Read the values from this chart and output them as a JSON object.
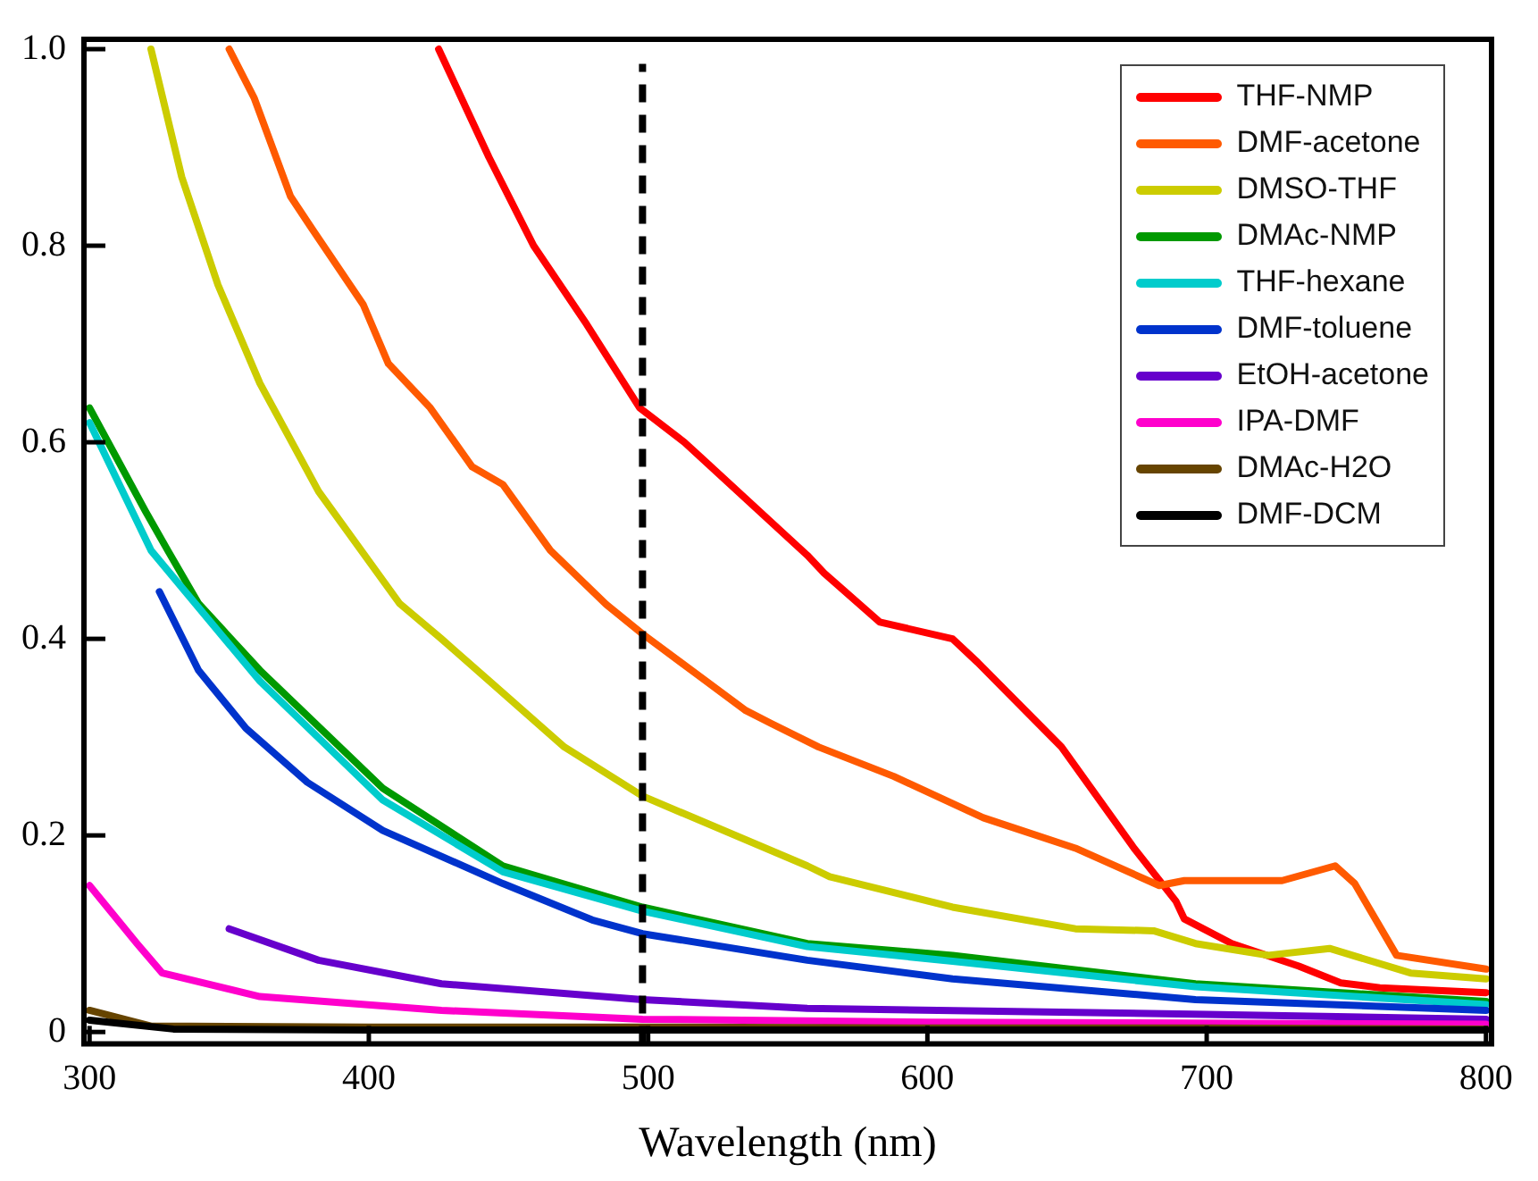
{
  "chart_data": {
    "type": "line",
    "xlabel": "Wavelength (nm)",
    "xlim": [
      298,
      802
    ],
    "xticks": [
      300,
      400,
      500,
      600,
      700,
      800
    ],
    "ylim": [
      -0.012,
      1.01
    ],
    "yticks": [
      0,
      {
        "value": 0.2,
        "label": "0.2"
      },
      {
        "value": 0.4,
        "label": "0.4"
      },
      {
        "value": 0.6,
        "label": "0.6"
      },
      {
        "value": 0.8,
        "label": "0.8"
      },
      {
        "value": 1,
        "label": "1.0"
      }
    ],
    "grid": false,
    "legend": "top right",
    "line_style": "solid",
    "marker": "none",
    "ref_lines": [
      {
        "axis": "x",
        "value": 498,
        "color": "#000000",
        "line_style": "dashed"
      }
    ],
    "series": [
      {
        "name": "THF-NMP",
        "color": "#ff0000",
        "x": [
          425,
          443,
          459,
          478,
          497,
          513,
          557,
          563,
          583,
          609,
          618,
          648,
          674,
          689,
          692,
          709,
          733,
          748,
          762,
          800
        ],
        "values": [
          1.0,
          0.89,
          0.8,
          0.72,
          0.635,
          0.6,
          0.485,
          0.467,
          0.417,
          0.4,
          0.376,
          0.29,
          0.187,
          0.133,
          0.115,
          0.09,
          0.067,
          0.05,
          0.045,
          0.04
        ]
      },
      {
        "name": "DMF-acetone",
        "color": "#ff5a00",
        "x": [
          350,
          359,
          372,
          379,
          398,
          407,
          422,
          437,
          448,
          465,
          485,
          498,
          535,
          544,
          561,
          588,
          620,
          653,
          683,
          692,
          727,
          746,
          753,
          768,
          800
        ],
        "values": [
          1.0,
          0.95,
          0.85,
          0.82,
          0.74,
          0.68,
          0.635,
          0.575,
          0.557,
          0.49,
          0.435,
          0.405,
          0.327,
          0.314,
          0.29,
          0.26,
          0.218,
          0.187,
          0.149,
          0.154,
          0.154,
          0.169,
          0.151,
          0.078,
          0.064
        ]
      },
      {
        "name": "DMSO-THF",
        "color": "#cccc00",
        "x": [
          322,
          333,
          346,
          361,
          382,
          411,
          426,
          470,
          498,
          557,
          565,
          609,
          653,
          681,
          696,
          722,
          744,
          773,
          800
        ],
        "values": [
          1.0,
          0.87,
          0.76,
          0.66,
          0.55,
          0.436,
          0.4,
          0.29,
          0.24,
          0.169,
          0.158,
          0.127,
          0.105,
          0.103,
          0.09,
          0.078,
          0.085,
          0.06,
          0.054
        ]
      },
      {
        "name": "DMAc-NMP",
        "color": "#009900",
        "x": [
          300,
          320,
          328,
          339,
          361,
          405,
          448,
          498,
          557,
          609,
          696,
          800
        ],
        "values": [
          0.635,
          0.53,
          0.49,
          0.436,
          0.368,
          0.248,
          0.169,
          0.127,
          0.09,
          0.078,
          0.049,
          0.031
        ]
      },
      {
        "name": "THF-hexane",
        "color": "#00cccc",
        "x": [
          300,
          322,
          361,
          405,
          448,
          498,
          557,
          609,
          696,
          800
        ],
        "values": [
          0.62,
          0.49,
          0.357,
          0.236,
          0.163,
          0.123,
          0.087,
          0.072,
          0.046,
          0.028
        ]
      },
      {
        "name": "DMF-toluene",
        "color": "#0033cc",
        "x": [
          325,
          339,
          356,
          378,
          405,
          448,
          480,
          498,
          557,
          609,
          696,
          800
        ],
        "values": [
          0.448,
          0.368,
          0.309,
          0.254,
          0.205,
          0.151,
          0.114,
          0.1,
          0.073,
          0.054,
          0.033,
          0.022
        ]
      },
      {
        "name": "EtOH-acetone",
        "color": "#6600cc",
        "x": [
          350,
          382,
          426,
          498,
          557,
          700,
          800
        ],
        "values": [
          0.105,
          0.073,
          0.049,
          0.033,
          0.024,
          0.018,
          0.013
        ]
      },
      {
        "name": "IPA-DMF",
        "color": "#ff00cc",
        "x": [
          300,
          317,
          326,
          361,
          426,
          498,
          600,
          800
        ],
        "values": [
          0.149,
          0.09,
          0.06,
          0.036,
          0.022,
          0.013,
          0.01,
          0.008
        ]
      },
      {
        "name": "DMAc-H2O",
        "color": "#664400",
        "x": [
          300,
          322,
          400,
          500,
          600,
          700,
          800
        ],
        "values": [
          0.022,
          0.006,
          0.005,
          0.005,
          0.004,
          0.004,
          0.003
        ]
      },
      {
        "name": "DMF-DCM",
        "color": "#000000",
        "x": [
          300,
          330,
          400,
          500,
          600,
          700,
          800
        ],
        "values": [
          0.012,
          0.003,
          0.002,
          0.002,
          0.002,
          0.002,
          0.002
        ]
      }
    ]
  }
}
